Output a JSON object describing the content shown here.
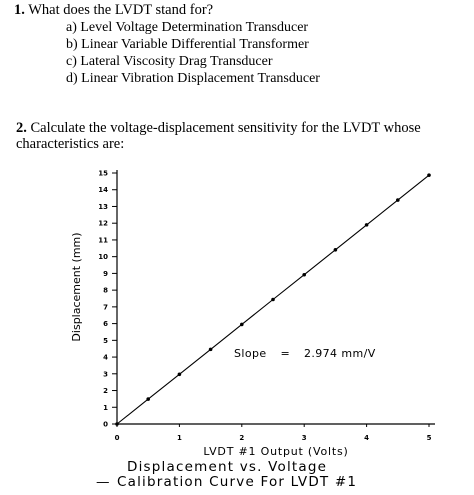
{
  "question1": {
    "number": "1.",
    "text": "What does the LVDT stand for?",
    "options": [
      "a) Level Voltage Determination Transducer",
      "b) Linear Variable Differential Transformer",
      "c) Lateral Viscosity Drag Transducer",
      "d) Linear Vibration Displacement Transducer"
    ]
  },
  "question2": {
    "number": "2.",
    "line1": "Calculate the voltage-displacement sensitivity for the LVDT whose",
    "line2": "characteristics are:"
  },
  "chart_data": {
    "type": "line",
    "xlabel": "LVDT #1 Output (Volts)",
    "ylabel": "Displacement (mm)",
    "xlim": [
      0,
      5
    ],
    "ylim": [
      0,
      15
    ],
    "xticks": [
      "0",
      "1",
      "2",
      "3",
      "4",
      "5"
    ],
    "yticks": [
      "0",
      "1",
      "2",
      "3",
      "4",
      "5",
      "6",
      "7",
      "8",
      "9",
      "10",
      "11",
      "12",
      "13",
      "14",
      "15"
    ],
    "x": [
      0,
      0.5,
      1,
      1.5,
      2,
      2.5,
      3,
      3.5,
      4,
      4.5,
      5
    ],
    "y": [
      0,
      1.49,
      2.97,
      4.46,
      5.95,
      7.44,
      8.92,
      10.41,
      11.9,
      13.38,
      14.87
    ],
    "annotation": {
      "label": "Slope",
      "equals": "=",
      "value": "2.974 mm/V"
    },
    "caption_line1": "Displacement vs. Voltage",
    "caption_dash": "—",
    "caption_line2": "Calibration Curve For LVDT #1"
  }
}
